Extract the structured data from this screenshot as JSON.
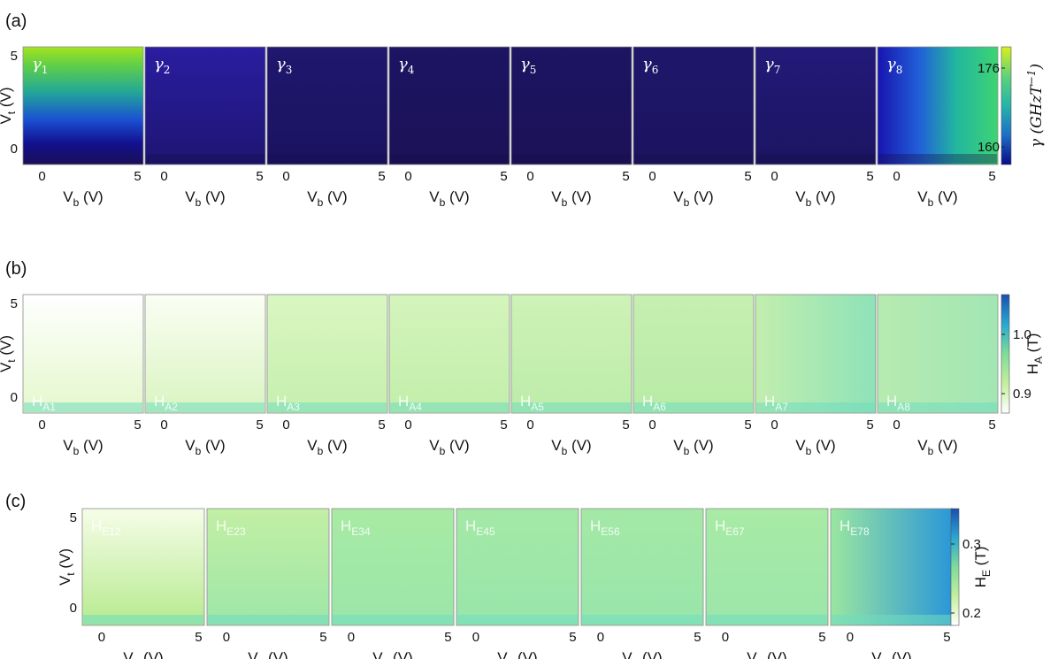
{
  "figure": {
    "panels": [
      "(a)",
      "(b)",
      "(c)"
    ]
  },
  "chart_data": [
    {
      "type": "heatmap",
      "panel": "(a)",
      "xlabel": "V_b (V)",
      "ylabel": "V_t (V)",
      "xticks": [
        "0",
        "5"
      ],
      "yticks": [
        "5",
        "0"
      ],
      "xlim": [
        -1,
        5.3
      ],
      "ylim": [
        -1,
        5.7
      ],
      "subplots": [
        {
          "label": "γ",
          "sub": "1",
          "start": "#0b0a5a",
          "end": "#9be22e",
          "field": "vertical"
        },
        {
          "label": "γ",
          "sub": "2",
          "start": "#1e1573",
          "end": "#2a1da0",
          "field": "vertical"
        },
        {
          "label": "γ",
          "sub": "3",
          "start": "#1a1260",
          "end": "#20176e",
          "field": "vertical"
        },
        {
          "label": "γ",
          "sub": "4",
          "start": "#1b1258",
          "end": "#1d1462",
          "field": "vertical"
        },
        {
          "label": "γ",
          "sub": "5",
          "start": "#1b1258",
          "end": "#1d1462",
          "field": "vertical"
        },
        {
          "label": "γ",
          "sub": "6",
          "start": "#1c1460",
          "end": "#1e166a",
          "field": "vertical"
        },
        {
          "label": "γ",
          "sub": "7",
          "start": "#1c1462",
          "end": "#221a78",
          "field": "vertical"
        },
        {
          "label": "γ",
          "sub": "8",
          "start": "#1a10a0",
          "end": "#2fcf7a",
          "field": "horizontal"
        }
      ],
      "colorbar": {
        "label": "γ (GHzT",
        "label_sup": "−1",
        "label_close": ")",
        "ticks": [
          "176",
          "160"
        ],
        "colors": [
          "#0b0a8a",
          "#1c6fc6",
          "#25b4a8",
          "#5ed37a",
          "#d8ef1c"
        ]
      }
    },
    {
      "type": "heatmap",
      "panel": "(b)",
      "xlabel": "V_b (V)",
      "ylabel": "V_t (V)",
      "xticks": [
        "0",
        "5"
      ],
      "yticks": [
        "5",
        "0"
      ],
      "xlim": [
        -1,
        5.3
      ],
      "ylim": [
        -1,
        5.7
      ],
      "subplots": [
        {
          "label": "H",
          "sub": "A1",
          "start": "#e4f8cc",
          "end": "#ffffff",
          "field": "vertical"
        },
        {
          "label": "H",
          "sub": "A2",
          "start": "#d8f4c0",
          "end": "#fbfef4",
          "field": "vertical"
        },
        {
          "label": "H",
          "sub": "A3",
          "start": "#c6efae",
          "end": "#d9f6c2",
          "field": "vertical"
        },
        {
          "label": "H",
          "sub": "A4",
          "start": "#c2eeaa",
          "end": "#d4f4bc",
          "field": "vertical"
        },
        {
          "label": "H",
          "sub": "A5",
          "start": "#bdeca8",
          "end": "#cef2b8",
          "field": "vertical"
        },
        {
          "label": "H",
          "sub": "A6",
          "start": "#b8eba6",
          "end": "#c6efb0",
          "field": "vertical"
        },
        {
          "label": "H",
          "sub": "A7",
          "start": "#c2eeae",
          "end": "#8ee2b8",
          "field": "horizontal"
        },
        {
          "label": "H",
          "sub": "A8",
          "start": "#b7eab0",
          "end": "#a2e6b4",
          "field": "horizontal"
        }
      ],
      "colorbar": {
        "label": "H",
        "label_sub": "A",
        "label_close": " (T)",
        "ticks": [
          "1.0",
          "0.9"
        ],
        "colors": [
          "#ffffff",
          "#c4ef9c",
          "#7fdc9a",
          "#2aa8d0",
          "#1a4fb0"
        ]
      }
    },
    {
      "type": "heatmap",
      "panel": "(c)",
      "xlabel": "V_b (V)",
      "ylabel": "V_t (V)",
      "xticks": [
        "0",
        "5"
      ],
      "yticks": [
        "5",
        "0"
      ],
      "xlim": [
        -1,
        5.3
      ],
      "ylim": [
        -1,
        5.7
      ],
      "subplots": [
        {
          "label": "H",
          "sub": "E12",
          "start": "#b6ea8e",
          "end": "#f6fde8",
          "field": "vertical"
        },
        {
          "label": "H",
          "sub": "E23",
          "start": "#9ee6a8",
          "end": "#c2efa4",
          "field": "vertical"
        },
        {
          "label": "H",
          "sub": "E34",
          "start": "#9ae6a8",
          "end": "#a8eaa4",
          "field": "vertical"
        },
        {
          "label": "H",
          "sub": "E45",
          "start": "#98e6aa",
          "end": "#a4e8a6",
          "field": "vertical"
        },
        {
          "label": "H",
          "sub": "E56",
          "start": "#98e6aa",
          "end": "#a4e8a6",
          "field": "vertical"
        },
        {
          "label": "H",
          "sub": "E67",
          "start": "#9ce6aa",
          "end": "#a8eaa6",
          "field": "vertical"
        },
        {
          "label": "H",
          "sub": "E78",
          "start": "#9ae6a0",
          "end": "#2a96d8",
          "field": "horizontal"
        }
      ],
      "colorbar": {
        "label": "H",
        "label_sub": "E",
        "label_close": " (T)",
        "ticks": [
          "0.3",
          "0.2"
        ],
        "colors": [
          "#ffffff",
          "#c4ef9c",
          "#7fdc9a",
          "#2aa8d0",
          "#1a4fb0"
        ]
      }
    }
  ]
}
